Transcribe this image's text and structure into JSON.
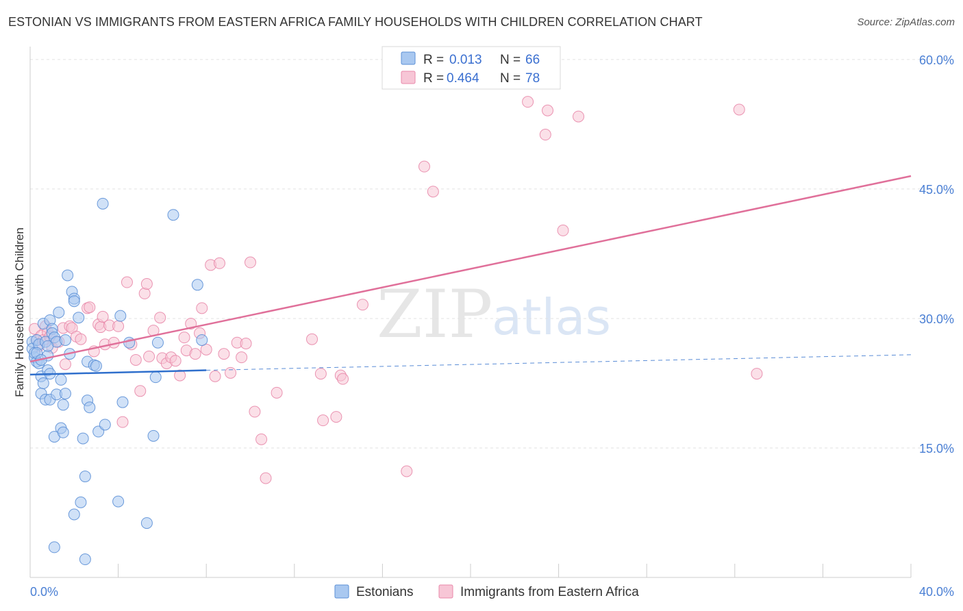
{
  "header": {
    "title": "ESTONIAN VS IMMIGRANTS FROM EASTERN AFRICA FAMILY HOUSEHOLDS WITH CHILDREN CORRELATION CHART",
    "source": "Source: ZipAtlas.com"
  },
  "watermark": {
    "zip": "ZIP",
    "atlas": "atlas"
  },
  "chart_data": {
    "type": "scatter",
    "title": "ESTONIAN VS IMMIGRANTS FROM EASTERN AFRICA FAMILY HOUSEHOLDS WITH CHILDREN CORRELATION CHART",
    "xlabel": "",
    "ylabel": "Family Households with Children",
    "xlim": [
      0,
      40
    ],
    "ylim": [
      0,
      61.5
    ],
    "x_ticks": [
      0,
      4,
      8,
      12,
      16,
      20,
      24,
      28,
      32,
      36,
      40
    ],
    "x_tick_labels": [
      {
        "x": 0,
        "label": "0.0%"
      },
      {
        "x": 40,
        "label": "40.0%"
      }
    ],
    "y_ticks": [
      {
        "y": 15,
        "label": "15.0%"
      },
      {
        "y": 30,
        "label": "30.0%"
      },
      {
        "y": 45,
        "label": "45.0%"
      },
      {
        "y": 60,
        "label": "60.0%"
      }
    ],
    "grid": "horizontal-dashed",
    "legend_position": "top-center",
    "colors": {
      "estonians_fill": "#a9c8f0",
      "estonians_stroke": "#5b8fd6",
      "estonians_line": "#2f6fcc",
      "immigrants_fill": "#f7c6d6",
      "immigrants_stroke": "#e888aa",
      "immigrants_line": "#e0709a",
      "tick_text": "#4a7fd4"
    },
    "legend": [
      {
        "r_label": "R = ",
        "r_value": "0.013",
        "n_label": "N = ",
        "n_value": "66"
      },
      {
        "r_label": "R = ",
        "r_value": "0.464",
        "n_label": "N = ",
        "n_value": "78"
      }
    ],
    "series": [
      {
        "name": "Estonians",
        "trend": {
          "solid": [
            [
              0,
              23.5
            ],
            [
              8,
              24.0
            ]
          ],
          "dashed": [
            [
              8,
              24.0
            ],
            [
              40,
              25.8
            ]
          ]
        },
        "points": [
          [
            0.1,
            27.3
          ],
          [
            0.1,
            26.5
          ],
          [
            0.2,
            25.5
          ],
          [
            0.2,
            26.0
          ],
          [
            0.3,
            25.0
          ],
          [
            0.3,
            27.5
          ],
          [
            0.4,
            27.0
          ],
          [
            0.4,
            24.8
          ],
          [
            0.5,
            23.3
          ],
          [
            0.5,
            21.3
          ],
          [
            0.6,
            29.4
          ],
          [
            0.6,
            22.5
          ],
          [
            0.7,
            20.6
          ],
          [
            0.7,
            27.3
          ],
          [
            0.8,
            25.7
          ],
          [
            0.8,
            24.0
          ],
          [
            0.9,
            23.6
          ],
          [
            0.9,
            20.6
          ],
          [
            0.9,
            29.8
          ],
          [
            1.0,
            28.8
          ],
          [
            1.0,
            28.3
          ],
          [
            1.1,
            27.8
          ],
          [
            1.1,
            16.3
          ],
          [
            1.2,
            21.2
          ],
          [
            1.2,
            27.3
          ],
          [
            1.3,
            30.7
          ],
          [
            1.4,
            22.9
          ],
          [
            1.4,
            17.3
          ],
          [
            1.5,
            16.8
          ],
          [
            1.5,
            20.0
          ],
          [
            1.6,
            21.3
          ],
          [
            1.6,
            27.5
          ],
          [
            1.7,
            35.0
          ],
          [
            1.8,
            25.9
          ],
          [
            1.9,
            33.1
          ],
          [
            2.0,
            32.3
          ],
          [
            2.0,
            32.0
          ],
          [
            2.2,
            30.1
          ],
          [
            2.4,
            16.1
          ],
          [
            2.5,
            11.7
          ],
          [
            2.6,
            25.0
          ],
          [
            2.6,
            20.5
          ],
          [
            2.7,
            19.7
          ],
          [
            2.9,
            24.6
          ],
          [
            3.0,
            24.5
          ],
          [
            3.1,
            16.9
          ],
          [
            3.4,
            17.7
          ],
          [
            4.0,
            8.8
          ],
          [
            3.3,
            43.3
          ],
          [
            4.2,
            20.3
          ],
          [
            4.1,
            30.3
          ],
          [
            4.5,
            27.2
          ],
          [
            5.6,
            16.4
          ],
          [
            5.7,
            23.2
          ],
          [
            5.8,
            27.2
          ],
          [
            6.5,
            42.0
          ],
          [
            7.6,
            33.9
          ],
          [
            7.8,
            27.5
          ],
          [
            2.0,
            7.3
          ],
          [
            2.3,
            8.7
          ],
          [
            1.1,
            3.5
          ],
          [
            2.5,
            2.1
          ],
          [
            5.3,
            6.3
          ],
          [
            0.3,
            26.0
          ],
          [
            0.5,
            25.2
          ],
          [
            0.8,
            26.8
          ]
        ]
      },
      {
        "name": "Immigrants from Eastern Africa",
        "trend": {
          "solid": [
            [
              0,
              25.0
            ],
            [
              40,
              46.5
            ]
          ]
        },
        "points": [
          [
            0.2,
            28.8
          ],
          [
            0.3,
            27.5
          ],
          [
            0.4,
            26.8
          ],
          [
            0.5,
            28.0
          ],
          [
            0.6,
            27.5
          ],
          [
            0.7,
            29.1
          ],
          [
            0.8,
            28.4
          ],
          [
            0.9,
            27.9
          ],
          [
            1.0,
            26.6
          ],
          [
            1.3,
            27.3
          ],
          [
            1.5,
            28.9
          ],
          [
            1.6,
            24.7
          ],
          [
            1.8,
            29.1
          ],
          [
            1.9,
            28.9
          ],
          [
            2.1,
            27.9
          ],
          [
            2.3,
            27.6
          ],
          [
            2.6,
            31.2
          ],
          [
            2.7,
            31.3
          ],
          [
            2.9,
            26.2
          ],
          [
            3.1,
            29.3
          ],
          [
            3.2,
            29.0
          ],
          [
            3.3,
            30.2
          ],
          [
            3.4,
            27.0
          ],
          [
            3.6,
            29.2
          ],
          [
            3.8,
            27.2
          ],
          [
            4.0,
            29.1
          ],
          [
            4.2,
            18.0
          ],
          [
            4.4,
            34.2
          ],
          [
            4.6,
            27.0
          ],
          [
            4.8,
            25.2
          ],
          [
            5.0,
            21.6
          ],
          [
            5.2,
            32.9
          ],
          [
            5.3,
            34.0
          ],
          [
            5.4,
            25.6
          ],
          [
            5.6,
            28.6
          ],
          [
            5.9,
            30.1
          ],
          [
            6.0,
            25.4
          ],
          [
            6.2,
            24.8
          ],
          [
            6.4,
            25.5
          ],
          [
            6.6,
            25.1
          ],
          [
            6.8,
            23.4
          ],
          [
            7.0,
            27.8
          ],
          [
            7.1,
            26.3
          ],
          [
            7.3,
            29.4
          ],
          [
            7.5,
            25.9
          ],
          [
            7.7,
            28.3
          ],
          [
            7.8,
            31.2
          ],
          [
            8.0,
            26.4
          ],
          [
            8.2,
            36.2
          ],
          [
            8.4,
            23.3
          ],
          [
            8.6,
            36.4
          ],
          [
            8.8,
            25.9
          ],
          [
            9.1,
            23.7
          ],
          [
            9.4,
            27.2
          ],
          [
            9.6,
            25.5
          ],
          [
            9.8,
            27.1
          ],
          [
            10.0,
            36.5
          ],
          [
            10.2,
            19.2
          ],
          [
            10.5,
            16.0
          ],
          [
            10.7,
            11.5
          ],
          [
            11.2,
            21.4
          ],
          [
            12.8,
            27.6
          ],
          [
            13.2,
            23.6
          ],
          [
            13.3,
            18.2
          ],
          [
            13.9,
            18.6
          ],
          [
            14.1,
            23.4
          ],
          [
            14.2,
            23.0
          ],
          [
            15.1,
            31.6
          ],
          [
            17.1,
            12.3
          ],
          [
            17.9,
            47.6
          ],
          [
            18.3,
            44.7
          ],
          [
            22.6,
            55.1
          ],
          [
            23.4,
            51.3
          ],
          [
            23.5,
            54.1
          ],
          [
            24.2,
            40.2
          ],
          [
            24.9,
            53.4
          ],
          [
            32.2,
            54.2
          ],
          [
            33.0,
            23.6
          ]
        ]
      }
    ]
  },
  "bottom_legend": {
    "estonians": "Estonians",
    "immigrants": "Immigrants from Eastern Africa"
  }
}
